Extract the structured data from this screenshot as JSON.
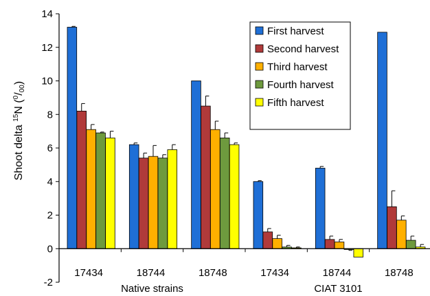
{
  "chart_data": {
    "type": "bar",
    "ylabel_parts": [
      "Shoot delta ",
      "15",
      "N (",
      "0",
      "/",
      "00",
      ")"
    ],
    "yticks": [
      -2,
      0,
      2,
      4,
      6,
      8,
      10,
      12,
      14
    ],
    "ylim": [
      -2,
      14
    ],
    "categories": [
      "17434",
      "18744",
      "18748",
      "17434",
      "18744",
      "18748"
    ],
    "groups": [
      {
        "label": "Native strains",
        "from": 0,
        "to": 2
      },
      {
        "label": "CIAT 3101",
        "from": 3,
        "to": 5
      }
    ],
    "legend_position": "top-right",
    "series": [
      {
        "name": "First harvest",
        "color": "#1f6fd6",
        "values": [
          13.2,
          6.2,
          10.0,
          4.0,
          4.8,
          12.9
        ],
        "errors": [
          0.05,
          0.1,
          0.0,
          0.05,
          0.1,
          0.0
        ]
      },
      {
        "name": "Second harvest",
        "color": "#b03a3a",
        "values": [
          8.2,
          5.4,
          8.5,
          1.0,
          0.55,
          2.5
        ],
        "errors": [
          0.45,
          0.3,
          0.6,
          0.2,
          0.2,
          0.95
        ]
      },
      {
        "name": "Third harvest",
        "color": "#ffb000",
        "values": [
          7.1,
          5.5,
          7.1,
          0.6,
          0.4,
          1.7
        ],
        "errors": [
          0.3,
          0.65,
          0.5,
          0.2,
          0.15,
          0.25
        ]
      },
      {
        "name": "Fourth harvest",
        "color": "#6e9a3e",
        "values": [
          6.9,
          5.4,
          6.6,
          0.1,
          -0.05,
          0.5
        ],
        "errors": [
          0.05,
          0.2,
          0.3,
          0.1,
          0.05,
          0.25
        ]
      },
      {
        "name": "Fifth harvest",
        "color": "#ffff00",
        "values": [
          6.6,
          5.9,
          6.2,
          0.05,
          -0.5,
          0.1
        ],
        "errors": [
          0.4,
          0.3,
          0.1,
          0.05,
          0.0,
          0.15
        ]
      }
    ]
  }
}
